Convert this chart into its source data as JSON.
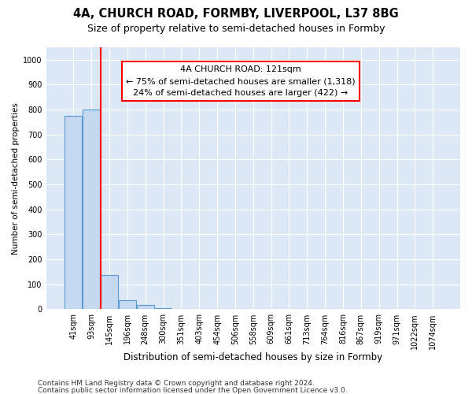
{
  "title": "4A, CHURCH ROAD, FORMBY, LIVERPOOL, L37 8BG",
  "subtitle": "Size of property relative to semi-detached houses in Formby",
  "xlabel": "Distribution of semi-detached houses by size in Formby",
  "ylabel": "Number of semi-detached properties",
  "footnote1": "Contains HM Land Registry data © Crown copyright and database right 2024.",
  "footnote2": "Contains public sector information licensed under the Open Government Licence v3.0.",
  "bar_labels": [
    "41sqm",
    "93sqm",
    "145sqm",
    "196sqm",
    "248sqm",
    "300sqm",
    "351sqm",
    "403sqm",
    "454sqm",
    "506sqm",
    "558sqm",
    "609sqm",
    "661sqm",
    "713sqm",
    "764sqm",
    "816sqm",
    "867sqm",
    "919sqm",
    "971sqm",
    "1022sqm",
    "1074sqm"
  ],
  "bar_values": [
    775,
    800,
    137,
    35,
    17,
    5,
    0,
    0,
    0,
    0,
    0,
    0,
    0,
    0,
    0,
    0,
    0,
    0,
    0,
    0,
    0
  ],
  "bar_color": "#c5d9f1",
  "bar_edge_color": "#5b9bd5",
  "vline_x": 1.5,
  "vline_color": "#ff0000",
  "annotation_line1": "4A CHURCH ROAD: 121sqm",
  "annotation_line2": "← 75% of semi-detached houses are smaller (1,318)",
  "annotation_line3": "24% of semi-detached houses are larger (422) →",
  "annotation_box_color": "#ffffff",
  "annotation_box_edge": "#ff0000",
  "ylim": [
    0,
    1050
  ],
  "yticks": [
    0,
    100,
    200,
    300,
    400,
    500,
    600,
    700,
    800,
    900,
    1000
  ],
  "background_color": "#dce8f5",
  "grid_color": "#ffffff",
  "title_fontsize": 10.5,
  "subtitle_fontsize": 9,
  "xlabel_fontsize": 8.5,
  "ylabel_fontsize": 7.5,
  "tick_fontsize": 7,
  "annotation_fontsize": 8,
  "footnote_fontsize": 6.5
}
